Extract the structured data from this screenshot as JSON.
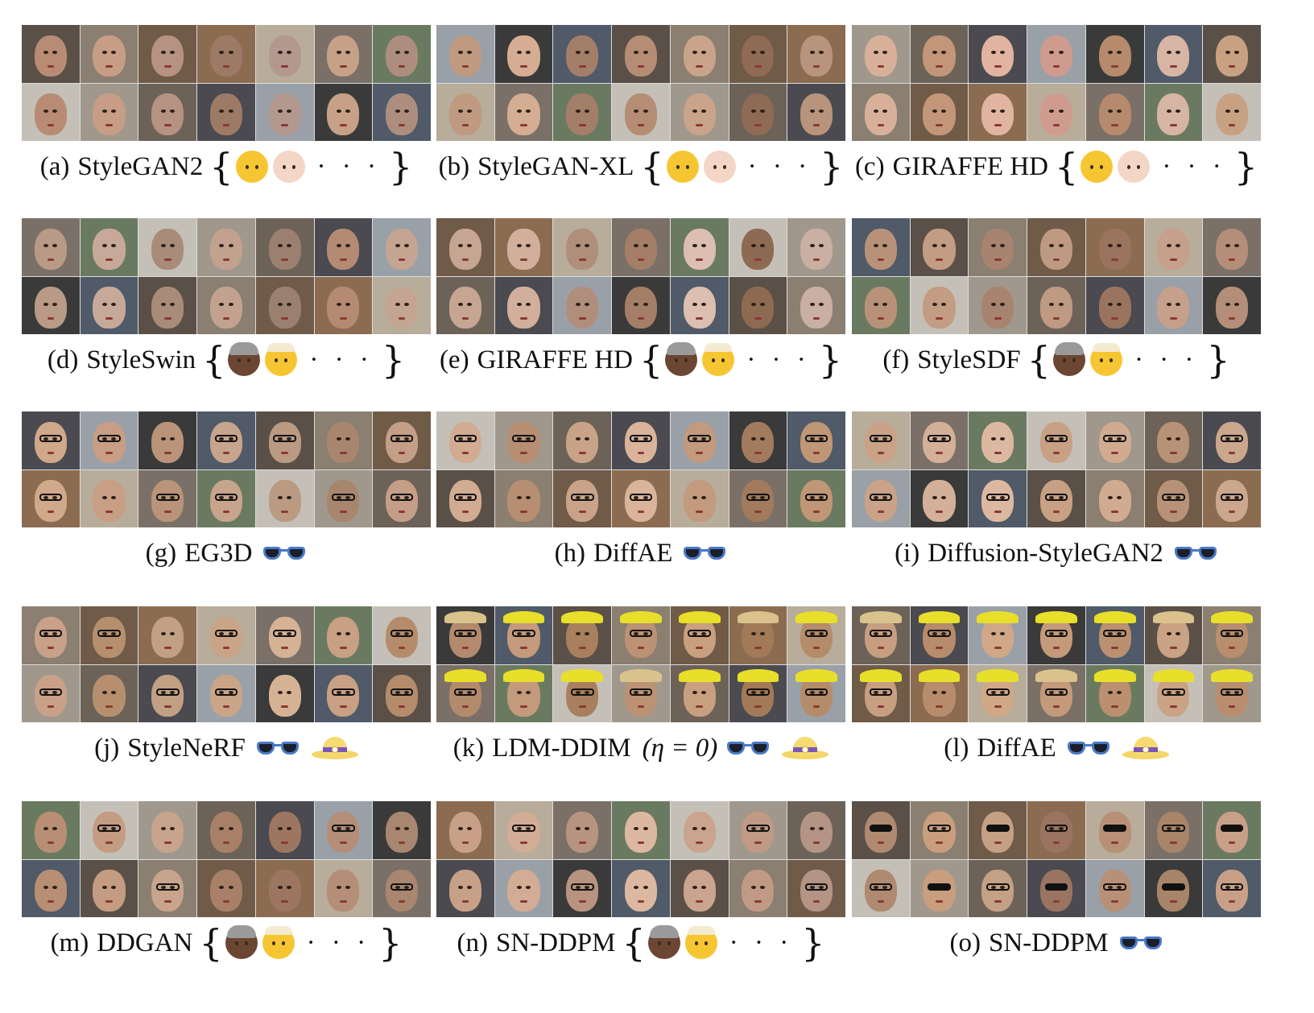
{
  "panels": [
    {
      "label": "(a)",
      "name": "StyleGAN2",
      "icons": [
        "baby-face",
        "baby-face-light"
      ],
      "dots": "· · ·",
      "math": "",
      "palette": [
        "#b88c74",
        "#c79d86",
        "#b69283",
        "#9d7a66",
        "#b3988e",
        "#c7a088",
        "#ad8e7e"
      ],
      "hats": false,
      "glasses": "none"
    },
    {
      "label": "(b)",
      "name": "StyleGAN-XL",
      "icons": [
        "baby-face",
        "baby-face-light"
      ],
      "dots": "· · ·",
      "math": "",
      "palette": [
        "#c09a80",
        "#d4ad92",
        "#a37e68",
        "#b58d74",
        "#c9a38a",
        "#8f6a55",
        "#b8947c"
      ],
      "hats": false,
      "glasses": "none"
    },
    {
      "label": "(c)",
      "name": "GIRAFFE HD",
      "icons": [
        "baby-face",
        "baby-face-light"
      ],
      "dots": "· · ·",
      "math": "",
      "palette": [
        "#d8b09a",
        "#c49679",
        "#e0b4a0",
        "#cf9b8e",
        "#b58a6d",
        "#d6b5a5",
        "#c8a182"
      ],
      "hats": false,
      "glasses": "none"
    },
    {
      "label": "(d)",
      "name": "StyleSwin",
      "icons": [
        "old-woman-face",
        "old-man-face"
      ],
      "dots": "· · ·",
      "math": "",
      "palette": [
        "#b99a86",
        "#c7a99a",
        "#a88b78",
        "#c2a28e",
        "#9b8070",
        "#b48a72",
        "#c4a592"
      ],
      "hats": false,
      "glasses": "none"
    },
    {
      "label": "(e)",
      "name": "GIRAFFE HD",
      "icons": [
        "old-woman-face",
        "old-man-face"
      ],
      "dots": "· · ·",
      "math": "",
      "palette": [
        "#c6a593",
        "#d1af9c",
        "#b08e7c",
        "#a47e66",
        "#dcbfb0",
        "#8e6a52",
        "#c9b0a3"
      ],
      "hats": false,
      "glasses": "none"
    },
    {
      "label": "(f)",
      "name": "StyleSDF",
      "icons": [
        "old-woman-face",
        "old-man-face"
      ],
      "dots": "· · ·",
      "math": "",
      "palette": [
        "#b89278",
        "#c39c84",
        "#a88470",
        "#bf9a82",
        "#9a745e",
        "#c6a08a",
        "#b48e78"
      ],
      "hats": false,
      "glasses": "none"
    },
    {
      "label": "(g)",
      "name": "EG3D",
      "icons": [
        "glasses"
      ],
      "dots": "",
      "math": "",
      "palette": [
        "#d0a88a",
        "#c89e84",
        "#b99478",
        "#c7a48c",
        "#bb9a82",
        "#a8866e",
        "#c49e86"
      ],
      "hats": false,
      "glasses": "some"
    },
    {
      "label": "(h)",
      "name": "DiffAE",
      "icons": [
        "glasses"
      ],
      "dots": "",
      "math": "",
      "palette": [
        "#d2ac92",
        "#b88e72",
        "#c9a388",
        "#dab49a",
        "#c39a7e",
        "#a27a5e",
        "#bf9676"
      ],
      "hats": false,
      "glasses": "some"
    },
    {
      "label": "(i)",
      "name": "Diffusion-StyleGAN2",
      "icons": [
        "glasses"
      ],
      "dots": "",
      "math": "",
      "palette": [
        "#c9a288",
        "#d4b098",
        "#ddb8a0",
        "#c8a084",
        "#d1ab90",
        "#b89276",
        "#cba78e"
      ],
      "hats": false,
      "glasses": "some"
    },
    {
      "label": "(j)",
      "name": "StyleNeRF",
      "icons": [
        "glasses",
        "sun-hat"
      ],
      "dots": "",
      "math": "",
      "palette": [
        "#c9a088",
        "#b6906e",
        "#c2a084",
        "#caa486",
        "#d6b294",
        "#c8a084",
        "#b48c6c"
      ],
      "hats": false,
      "glasses": "some"
    },
    {
      "label": "(k)",
      "name": "LDM-DDIM",
      "icons": [
        "glasses",
        "sun-hat"
      ],
      "dots": "",
      "math": "(η = 0)",
      "palette": [
        "#b48a6c",
        "#c49a7c",
        "#a8805e",
        "#bc9274",
        "#c8a080",
        "#a27a58",
        "#b48c6a"
      ],
      "hats": true,
      "glasses": "some"
    },
    {
      "label": "(l)",
      "name": "DiffAE",
      "icons": [
        "glasses",
        "sun-hat"
      ],
      "dots": "",
      "math": "",
      "palette": [
        "#c79e80",
        "#b68c6c",
        "#d0a888",
        "#c49a7a",
        "#ba9070",
        "#caa284",
        "#b88e6e"
      ],
      "hats": true,
      "glasses": "some"
    },
    {
      "label": "(m)",
      "name": "DDGAN",
      "icons": [
        "old-woman-face",
        "old-man-face"
      ],
      "dots": "· · ·",
      "math": "",
      "palette": [
        "#b88e74",
        "#c49c82",
        "#c8a48c",
        "#a88068",
        "#9c7660",
        "#b48e76",
        "#a88670"
      ],
      "hats": false,
      "glasses": "few"
    },
    {
      "label": "(n)",
      "name": "SN-DDPM",
      "icons": [
        "old-woman-face",
        "old-man-face"
      ],
      "dots": "· · ·",
      "math": "",
      "palette": [
        "#c8a088",
        "#d2ac94",
        "#b89480",
        "#dcb8a0",
        "#caa48e",
        "#c09a84",
        "#b49484"
      ],
      "hats": false,
      "glasses": "few"
    },
    {
      "label": "(o)",
      "name": "SN-DDPM",
      "icons": [
        "glasses"
      ],
      "dots": "",
      "math": "",
      "palette": [
        "#b08a70",
        "#c89e7e",
        "#c4a084",
        "#9a7460",
        "#b89078",
        "#a88468",
        "#c8a088"
      ],
      "hats": false,
      "glasses": "sun"
    }
  ]
}
